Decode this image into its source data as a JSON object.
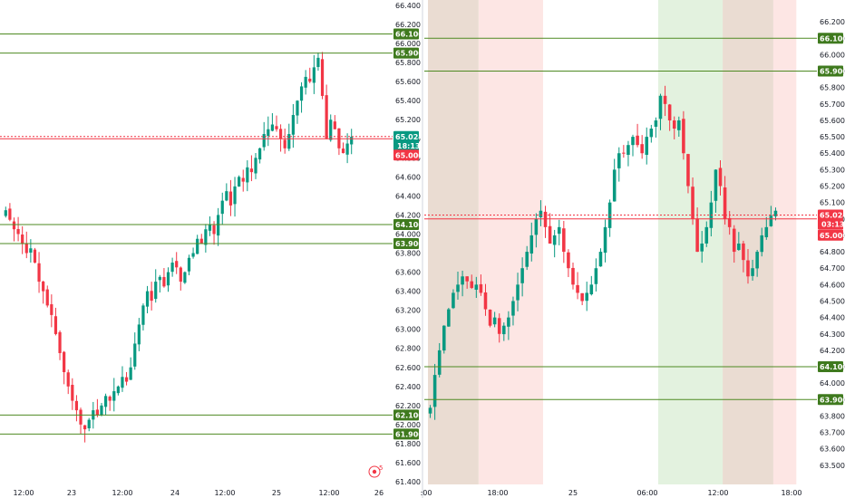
{
  "colors": {
    "up": "#089981",
    "down": "#f23645",
    "level_line": "#4e8a22",
    "price_line": "#f23645",
    "last_pill": "#089981",
    "green_session": "#e3f2df",
    "red_session": "#fde6e4",
    "brown_session": "#eadcd2"
  },
  "watermark": {
    "icon": "tradingview-target-icon",
    "label": "5"
  },
  "chart_data": [
    {
      "type": "candlestick",
      "timeframe_hint": "hourly",
      "ylim": [
        61.4,
        66.4
      ],
      "y_ticks": [
        "61.400",
        "61.600",
        "61.800",
        "62.000",
        "62.200",
        "62.400",
        "62.600",
        "62.800",
        "63.000",
        "63.200",
        "63.400",
        "63.600",
        "63.800",
        "64.000",
        "64.200",
        "64.400",
        "64.600",
        "64.800",
        "65.000",
        "65.200",
        "65.400",
        "65.600",
        "65.800",
        "66.000",
        "66.200",
        "66.400"
      ],
      "x_ticks": [
        "12:00",
        "23",
        "12:00",
        "24",
        "12:00",
        "25",
        "12:00",
        "26"
      ],
      "levels": [
        {
          "price": 66.1,
          "label": "66.100"
        },
        {
          "price": 65.9,
          "label": "65.900"
        },
        {
          "price": 64.1,
          "label": "64.100"
        },
        {
          "price": 63.9,
          "label": "63.900"
        },
        {
          "price": 62.1,
          "label": "62.100"
        },
        {
          "price": 61.9,
          "label": "61.900"
        }
      ],
      "last_price": {
        "price": 65.024,
        "label": "65.024",
        "countdown": "18:13"
      },
      "reference_price": {
        "price": 65.0,
        "label": "65.000"
      },
      "closes": [
        64.25,
        64.15,
        64.05,
        64.0,
        63.9,
        63.8,
        63.85,
        63.7,
        63.5,
        63.4,
        63.25,
        63.15,
        62.95,
        62.75,
        62.55,
        62.4,
        62.25,
        62.15,
        62.0,
        61.95,
        62.05,
        62.15,
        62.1,
        62.2,
        62.3,
        62.25,
        62.35,
        62.4,
        62.5,
        62.45,
        62.6,
        62.85,
        63.05,
        63.25,
        63.4,
        63.3,
        63.5,
        63.55,
        63.45,
        63.6,
        63.7,
        63.65,
        63.5,
        63.6,
        63.75,
        63.8,
        63.95,
        63.9,
        64.05,
        64.1,
        64.0,
        64.2,
        64.35,
        64.45,
        64.3,
        64.5,
        64.6,
        64.55,
        64.7,
        64.65,
        64.8,
        64.9,
        65.05,
        65.1,
        65.15,
        65.1,
        65.0,
        64.9,
        65.05,
        65.25,
        65.4,
        65.55,
        65.65,
        65.6,
        65.75,
        65.85,
        65.45,
        65.0,
        65.2,
        65.1,
        64.9,
        64.85,
        64.95,
        65.02
      ]
    },
    {
      "type": "candlestick",
      "timeframe_hint": "5-minute",
      "ylim": [
        63.4,
        66.3
      ],
      "y_ticks": [
        "63.500",
        "63.600",
        "63.700",
        "63.800",
        "63.900",
        "64.000",
        "64.100",
        "64.200",
        "64.300",
        "64.400",
        "64.500",
        "64.600",
        "64.700",
        "64.800",
        "64.900",
        "65.000",
        "65.100",
        "65.200",
        "65.300",
        "65.400",
        "65.500",
        "65.600",
        "65.700",
        "65.800",
        "65.900",
        "66.000",
        "66.100",
        "66.200"
      ],
      "x_ticks": [
        ":00",
        "18:00",
        "25",
        "06:00",
        "12:00",
        "18:00"
      ],
      "levels": [
        {
          "price": 66.1,
          "label": "66.100"
        },
        {
          "price": 65.9,
          "label": "65.900"
        },
        {
          "price": 64.1,
          "label": "64.100"
        },
        {
          "price": 63.9,
          "label": "63.900"
        }
      ],
      "last_price": {
        "price": 65.024,
        "label": "65.024",
        "countdown": "03:13"
      },
      "reference_price": {
        "price": 65.0,
        "label": "65.000"
      },
      "sessions": [
        {
          "from": 0,
          "to": 11,
          "color": "brown"
        },
        {
          "from": 11,
          "to": 25,
          "color": "red"
        },
        {
          "from": 50,
          "to": 64,
          "color": "green"
        },
        {
          "from": 64,
          "to": 75,
          "color": "brown"
        },
        {
          "from": 75,
          "to": 80,
          "color": "red"
        }
      ],
      "closes": [
        63.85,
        64.05,
        64.2,
        64.35,
        64.45,
        64.55,
        64.6,
        64.65,
        64.62,
        64.58,
        64.6,
        64.55,
        64.45,
        64.35,
        64.4,
        64.3,
        64.35,
        64.4,
        64.5,
        64.6,
        64.7,
        64.8,
        64.9,
        65.0,
        65.05,
        64.95,
        64.85,
        64.9,
        64.95,
        64.8,
        64.7,
        64.6,
        64.55,
        64.5,
        64.55,
        64.6,
        64.7,
        64.8,
        64.95,
        65.1,
        65.3,
        65.4,
        65.4,
        65.45,
        65.5,
        65.45,
        65.4,
        65.5,
        65.55,
        65.6,
        65.75,
        65.7,
        65.6,
        65.55,
        65.6,
        65.4,
        65.2,
        65.0,
        64.8,
        64.85,
        64.95,
        65.1,
        65.3,
        65.2,
        65.0,
        64.95,
        64.8,
        64.85,
        64.75,
        64.65,
        64.7,
        64.8,
        64.9,
        64.95,
        65.02,
        65.05
      ]
    }
  ]
}
